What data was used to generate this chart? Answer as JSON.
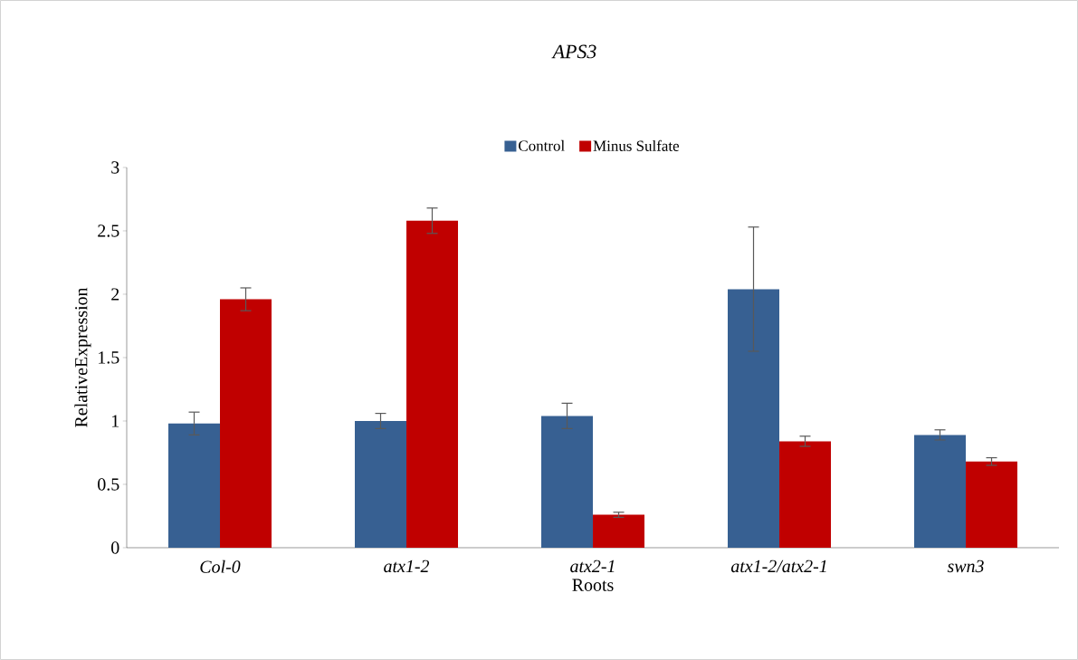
{
  "chart_data": {
    "type": "bar",
    "title": "APS3",
    "xlabel": "Roots",
    "ylabel": "RelativeExpression",
    "categories": [
      "Col-0",
      "atx1-2",
      "atx2-1",
      "atx1-2/atx2-1",
      "swn3"
    ],
    "series": [
      {
        "name": "Control",
        "color": "#376092",
        "values": [
          0.98,
          1.0,
          1.04,
          2.04,
          0.89
        ],
        "errors": [
          0.09,
          0.06,
          0.1,
          0.49,
          0.04
        ]
      },
      {
        "name": "Minus Sulfate",
        "color": "#c00000",
        "values": [
          1.96,
          2.58,
          0.26,
          0.84,
          0.68
        ],
        "errors": [
          0.09,
          0.1,
          0.02,
          0.04,
          0.03
        ]
      }
    ],
    "ylim": [
      0,
      3
    ],
    "yticks": [
      0,
      0.5,
      1,
      1.5,
      2,
      2.5,
      3
    ],
    "grid": false,
    "legend": "top"
  }
}
